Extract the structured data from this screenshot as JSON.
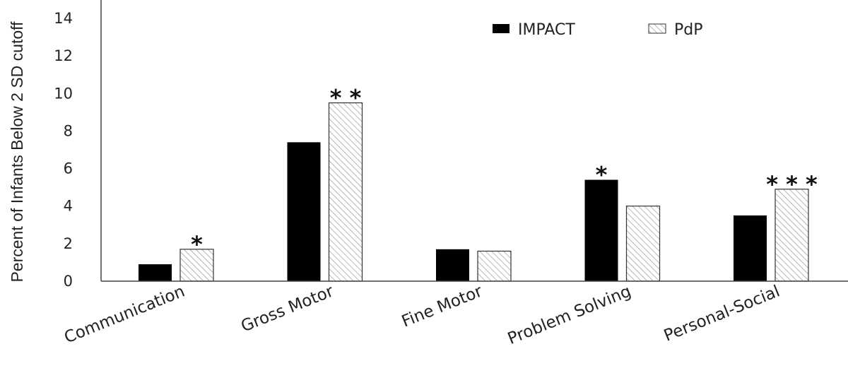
{
  "chart_data": {
    "type": "bar",
    "categories": [
      "Communication",
      "Gross Motor",
      "Fine Motor",
      "Problem Solving",
      "Personal-Social"
    ],
    "series": [
      {
        "name": "IMPACT",
        "values": [
          0.9,
          7.4,
          1.7,
          5.4,
          3.5
        ],
        "color": "#000000"
      },
      {
        "name": "PdP",
        "values": [
          1.7,
          9.5,
          1.6,
          4.0,
          4.9
        ],
        "color": "#ffffff",
        "pattern": "diagonal-hatch"
      }
    ],
    "significance": [
      {
        "category": "Communication",
        "series": "PdP",
        "label": "*"
      },
      {
        "category": "Gross Motor",
        "series": "PdP",
        "label": "* *"
      },
      {
        "category": "Problem Solving",
        "series": "IMPACT",
        "label": "*"
      },
      {
        "category": "Personal-Social",
        "series": "PdP",
        "label": "* * *"
      }
    ],
    "title": "",
    "xlabel": "",
    "ylabel": "Percent of Infants Below 2 SD cutoff",
    "ylim": [
      0,
      14
    ],
    "yticks": [
      "0",
      "2",
      "4",
      "6",
      "8",
      "10",
      "12",
      "14"
    ],
    "grid": false,
    "legend_position": "top-right"
  }
}
